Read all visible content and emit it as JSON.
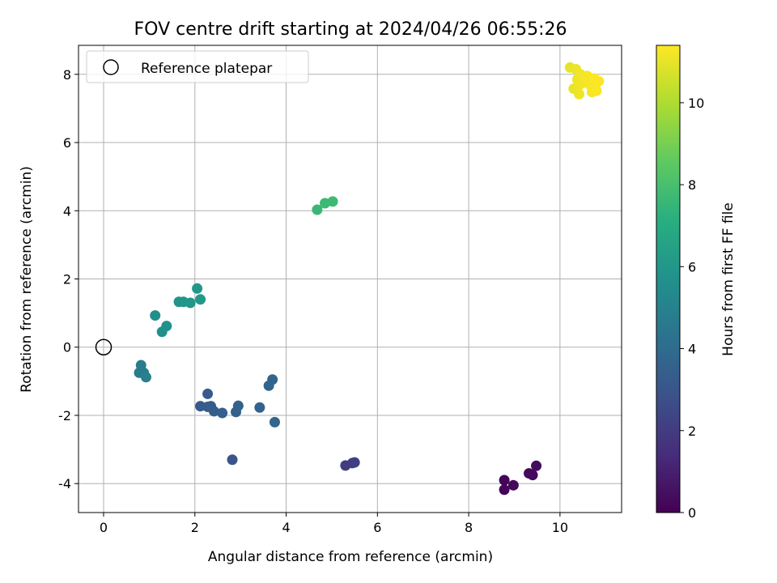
{
  "chart_data": {
    "type": "scatter",
    "title": "FOV centre drift starting at 2024/04/26 06:55:26",
    "xlabel": "Angular distance from reference (arcmin)",
    "ylabel": "Rotation from reference (arcmin)",
    "xlim": [
      -0.55,
      11.35
    ],
    "ylim": [
      -4.85,
      8.85
    ],
    "xticks": [
      0,
      2,
      4,
      6,
      8,
      10
    ],
    "yticks": [
      -4,
      -2,
      0,
      2,
      4,
      6,
      8
    ],
    "grid": true,
    "legend": {
      "location": "upper-left",
      "entries": [
        {
          "label": "Reference platepar",
          "marker": "open-circle"
        }
      ]
    },
    "reference_point": {
      "x": 0,
      "y": 0
    },
    "colorbar": {
      "label": "Hours from first FF file",
      "min": 0,
      "max": 11.4,
      "ticks": [
        0,
        2,
        4,
        6,
        8,
        10
      ],
      "colormap": "viridis"
    },
    "points": [
      {
        "x": 8.78,
        "y": -3.9,
        "c": 0.1
      },
      {
        "x": 8.78,
        "y": -4.18,
        "c": 0.15
      },
      {
        "x": 8.98,
        "y": -4.05,
        "c": 0.2
      },
      {
        "x": 9.32,
        "y": -3.7,
        "c": 0.25
      },
      {
        "x": 9.4,
        "y": -3.75,
        "c": 0.3
      },
      {
        "x": 9.48,
        "y": -3.48,
        "c": 0.35
      },
      {
        "x": 5.3,
        "y": -3.47,
        "c": 2.0
      },
      {
        "x": 5.45,
        "y": -3.4,
        "c": 2.05
      },
      {
        "x": 5.5,
        "y": -3.38,
        "c": 2.1
      },
      {
        "x": 2.82,
        "y": -3.3,
        "c": 3.0
      },
      {
        "x": 2.12,
        "y": -1.73,
        "c": 3.2
      },
      {
        "x": 2.28,
        "y": -1.37,
        "c": 3.25
      },
      {
        "x": 2.28,
        "y": -1.75,
        "c": 3.3
      },
      {
        "x": 2.35,
        "y": -1.73,
        "c": 3.35
      },
      {
        "x": 2.42,
        "y": -1.88,
        "c": 3.4
      },
      {
        "x": 2.6,
        "y": -1.93,
        "c": 3.45
      },
      {
        "x": 2.9,
        "y": -1.9,
        "c": 3.5
      },
      {
        "x": 2.95,
        "y": -1.72,
        "c": 3.55
      },
      {
        "x": 3.42,
        "y": -1.77,
        "c": 3.6
      },
      {
        "x": 3.62,
        "y": -1.13,
        "c": 3.65
      },
      {
        "x": 3.7,
        "y": -0.95,
        "c": 3.7
      },
      {
        "x": 3.75,
        "y": -2.2,
        "c": 3.75
      },
      {
        "x": 0.78,
        "y": -0.75,
        "c": 4.7
      },
      {
        "x": 0.82,
        "y": -0.53,
        "c": 4.75
      },
      {
        "x": 0.88,
        "y": -0.75,
        "c": 4.8
      },
      {
        "x": 0.93,
        "y": -0.88,
        "c": 4.85
      },
      {
        "x": 1.13,
        "y": 0.93,
        "c": 5.6
      },
      {
        "x": 1.28,
        "y": 0.45,
        "c": 5.65
      },
      {
        "x": 1.38,
        "y": 0.62,
        "c": 5.7
      },
      {
        "x": 1.65,
        "y": 1.33,
        "c": 5.85
      },
      {
        "x": 1.75,
        "y": 1.33,
        "c": 5.9
      },
      {
        "x": 1.9,
        "y": 1.3,
        "c": 5.95
      },
      {
        "x": 2.05,
        "y": 1.72,
        "c": 6.0
      },
      {
        "x": 2.12,
        "y": 1.4,
        "c": 6.05
      },
      {
        "x": 4.68,
        "y": 4.03,
        "c": 7.6
      },
      {
        "x": 4.85,
        "y": 4.22,
        "c": 7.65
      },
      {
        "x": 5.02,
        "y": 4.27,
        "c": 7.7
      },
      {
        "x": 10.22,
        "y": 8.2,
        "c": 11.0
      },
      {
        "x": 10.3,
        "y": 7.58,
        "c": 11.05
      },
      {
        "x": 10.35,
        "y": 8.15,
        "c": 11.1
      },
      {
        "x": 10.38,
        "y": 7.85,
        "c": 11.1
      },
      {
        "x": 10.4,
        "y": 7.65,
        "c": 11.15
      },
      {
        "x": 10.42,
        "y": 7.42,
        "c": 11.15
      },
      {
        "x": 10.45,
        "y": 8.0,
        "c": 11.2
      },
      {
        "x": 10.5,
        "y": 7.75,
        "c": 11.2
      },
      {
        "x": 10.55,
        "y": 7.9,
        "c": 11.25
      },
      {
        "x": 10.6,
        "y": 7.95,
        "c": 11.25
      },
      {
        "x": 10.65,
        "y": 7.7,
        "c": 11.3
      },
      {
        "x": 10.7,
        "y": 7.48,
        "c": 11.3
      },
      {
        "x": 10.75,
        "y": 7.88,
        "c": 11.35
      },
      {
        "x": 10.8,
        "y": 7.52,
        "c": 11.35
      },
      {
        "x": 10.85,
        "y": 7.8,
        "c": 11.4
      }
    ]
  }
}
